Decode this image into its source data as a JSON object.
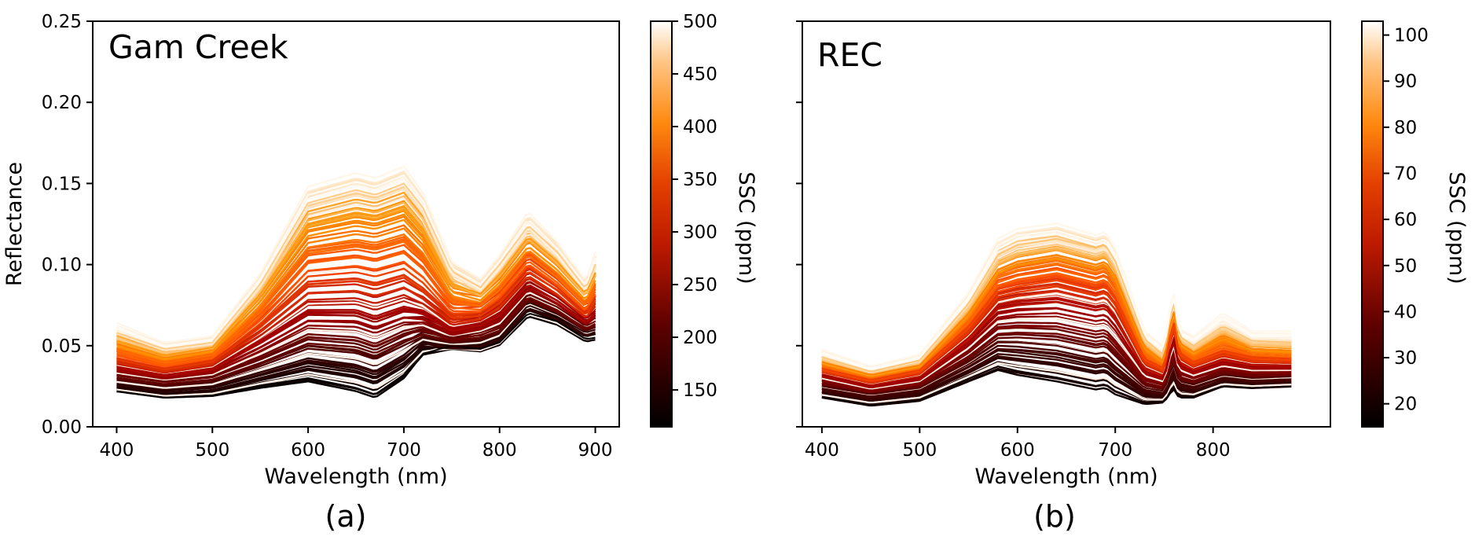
{
  "chart_data": [
    {
      "type": "line",
      "panel_label": "(a)",
      "annotation": "Gam Creek",
      "xlabel": "Wavelength (nm)",
      "ylabel": "Reflectance",
      "xlim": [
        375,
        925
      ],
      "ylim": [
        0,
        0.25
      ],
      "x_ticks": [
        400,
        500,
        600,
        700,
        800,
        900
      ],
      "y_ticks": [
        "0.00",
        "0.05",
        "0.10",
        "0.15",
        "0.20",
        "0.25"
      ],
      "grid": false,
      "colorbar": {
        "label": "SSC (ppm)",
        "range": [
          115,
          500
        ],
        "ticks": [
          150,
          200,
          250,
          300,
          350,
          400,
          450,
          500
        ],
        "colormap": "gist_heat"
      },
      "series": [
        {
          "ssc": 120,
          "x": [
            400,
            450,
            500,
            550,
            600,
            650,
            670,
            700,
            720,
            750,
            780,
            800,
            830,
            860,
            890,
            900
          ],
          "y": [
            0.022,
            0.018,
            0.019,
            0.024,
            0.028,
            0.022,
            0.018,
            0.03,
            0.045,
            0.05,
            0.048,
            0.052,
            0.07,
            0.065,
            0.054,
            0.055
          ]
        },
        {
          "ssc": 150,
          "x": [
            400,
            450,
            500,
            550,
            600,
            650,
            670,
            700,
            720,
            750,
            780,
            800,
            830,
            860,
            890,
            900
          ],
          "y": [
            0.026,
            0.022,
            0.024,
            0.032,
            0.04,
            0.036,
            0.032,
            0.042,
            0.052,
            0.05,
            0.05,
            0.055,
            0.075,
            0.068,
            0.058,
            0.06
          ]
        },
        {
          "ssc": 200,
          "x": [
            400,
            450,
            500,
            550,
            600,
            650,
            670,
            700,
            720,
            750,
            780,
            800,
            830,
            860,
            890,
            900
          ],
          "y": [
            0.032,
            0.028,
            0.031,
            0.042,
            0.055,
            0.053,
            0.049,
            0.057,
            0.06,
            0.055,
            0.058,
            0.062,
            0.082,
            0.074,
            0.062,
            0.065
          ]
        },
        {
          "ssc": 250,
          "x": [
            400,
            450,
            500,
            550,
            600,
            650,
            670,
            700,
            720,
            750,
            780,
            800,
            830,
            860,
            890,
            900
          ],
          "y": [
            0.037,
            0.032,
            0.036,
            0.052,
            0.07,
            0.07,
            0.066,
            0.072,
            0.07,
            0.06,
            0.064,
            0.07,
            0.09,
            0.08,
            0.066,
            0.072
          ]
        },
        {
          "ssc": 300,
          "x": [
            400,
            450,
            500,
            550,
            600,
            650,
            670,
            700,
            720,
            750,
            780,
            800,
            830,
            860,
            890,
            900
          ],
          "y": [
            0.042,
            0.036,
            0.041,
            0.062,
            0.088,
            0.09,
            0.087,
            0.092,
            0.084,
            0.068,
            0.07,
            0.078,
            0.098,
            0.086,
            0.07,
            0.08
          ]
        },
        {
          "ssc": 350,
          "x": [
            400,
            450,
            500,
            550,
            600,
            650,
            670,
            700,
            720,
            750,
            780,
            800,
            830,
            860,
            890,
            900
          ],
          "y": [
            0.048,
            0.04,
            0.045,
            0.072,
            0.108,
            0.112,
            0.11,
            0.115,
            0.104,
            0.078,
            0.076,
            0.086,
            0.108,
            0.094,
            0.076,
            0.088
          ]
        },
        {
          "ssc": 400,
          "x": [
            400,
            450,
            500,
            550,
            600,
            650,
            670,
            700,
            720,
            750,
            780,
            800,
            830,
            860,
            890,
            900
          ],
          "y": [
            0.053,
            0.044,
            0.049,
            0.082,
            0.125,
            0.132,
            0.13,
            0.136,
            0.122,
            0.088,
            0.082,
            0.094,
            0.117,
            0.102,
            0.082,
            0.095
          ]
        },
        {
          "ssc": 450,
          "x": [
            400,
            450,
            500,
            550,
            600,
            650,
            670,
            700,
            720,
            750,
            780,
            800,
            830,
            860,
            890,
            900
          ],
          "y": [
            0.058,
            0.048,
            0.052,
            0.088,
            0.138,
            0.146,
            0.143,
            0.15,
            0.135,
            0.096,
            0.086,
            0.1,
            0.124,
            0.108,
            0.085,
            0.1
          ]
        },
        {
          "ssc": 495,
          "x": [
            400,
            450,
            500,
            550,
            600,
            650,
            670,
            700,
            720,
            750,
            780,
            800,
            830,
            860,
            890,
            900
          ],
          "y": [
            0.062,
            0.05,
            0.054,
            0.091,
            0.143,
            0.151,
            0.148,
            0.155,
            0.139,
            0.098,
            0.088,
            0.102,
            0.128,
            0.11,
            0.087,
            0.104
          ]
        }
      ]
    },
    {
      "type": "line",
      "panel_label": "(b)",
      "annotation": "REC",
      "xlabel": "Wavelength (nm)",
      "ylabel": "",
      "xlim": [
        380,
        920
      ],
      "ylim": [
        0,
        0.25
      ],
      "x_ticks": [
        400,
        500,
        600,
        700,
        800
      ],
      "y_ticks": [],
      "grid": false,
      "colorbar": {
        "label": "SSC (ppm)",
        "range": [
          15,
          103
        ],
        "ticks": [
          20,
          30,
          40,
          50,
          60,
          70,
          80,
          90,
          100
        ],
        "colormap": "gist_heat"
      },
      "series": [
        {
          "ssc": 18,
          "x": [
            400,
            450,
            500,
            550,
            580,
            600,
            640,
            680,
            690,
            700,
            730,
            750,
            755,
            760,
            765,
            780,
            810,
            840,
            880
          ],
          "y": [
            0.018,
            0.013,
            0.016,
            0.028,
            0.035,
            0.032,
            0.028,
            0.023,
            0.024,
            0.02,
            0.014,
            0.015,
            0.02,
            0.023,
            0.018,
            0.018,
            0.025,
            0.024,
            0.025
          ]
        },
        {
          "ssc": 30,
          "x": [
            400,
            450,
            500,
            550,
            580,
            600,
            640,
            680,
            690,
            700,
            730,
            750,
            755,
            760,
            765,
            780,
            810,
            840,
            880
          ],
          "y": [
            0.025,
            0.02,
            0.024,
            0.04,
            0.052,
            0.052,
            0.05,
            0.045,
            0.046,
            0.04,
            0.024,
            0.022,
            0.032,
            0.038,
            0.028,
            0.026,
            0.032,
            0.03,
            0.031
          ]
        },
        {
          "ssc": 45,
          "x": [
            400,
            450,
            500,
            550,
            580,
            600,
            640,
            680,
            690,
            700,
            730,
            750,
            755,
            760,
            765,
            780,
            810,
            840,
            880
          ],
          "y": [
            0.032,
            0.025,
            0.03,
            0.052,
            0.07,
            0.072,
            0.073,
            0.068,
            0.069,
            0.062,
            0.034,
            0.03,
            0.045,
            0.054,
            0.038,
            0.034,
            0.04,
            0.037,
            0.037
          ]
        },
        {
          "ssc": 60,
          "x": [
            400,
            450,
            500,
            550,
            580,
            600,
            640,
            680,
            690,
            700,
            730,
            750,
            755,
            760,
            765,
            780,
            810,
            840,
            880
          ],
          "y": [
            0.036,
            0.029,
            0.035,
            0.062,
            0.085,
            0.088,
            0.092,
            0.086,
            0.088,
            0.08,
            0.042,
            0.036,
            0.054,
            0.064,
            0.046,
            0.04,
            0.047,
            0.043,
            0.042
          ]
        },
        {
          "ssc": 75,
          "x": [
            400,
            450,
            500,
            550,
            580,
            600,
            640,
            680,
            690,
            700,
            730,
            750,
            755,
            760,
            765,
            780,
            810,
            840,
            880
          ],
          "y": [
            0.04,
            0.032,
            0.038,
            0.07,
            0.097,
            0.102,
            0.106,
            0.1,
            0.102,
            0.093,
            0.049,
            0.04,
            0.06,
            0.071,
            0.052,
            0.046,
            0.055,
            0.048,
            0.047
          ]
        },
        {
          "ssc": 90,
          "x": [
            400,
            450,
            500,
            550,
            580,
            600,
            640,
            680,
            690,
            700,
            730,
            750,
            755,
            760,
            765,
            780,
            810,
            840,
            880
          ],
          "y": [
            0.043,
            0.034,
            0.041,
            0.076,
            0.106,
            0.112,
            0.116,
            0.11,
            0.112,
            0.102,
            0.054,
            0.044,
            0.065,
            0.076,
            0.056,
            0.05,
            0.062,
            0.053,
            0.052
          ]
        },
        {
          "ssc": 102,
          "x": [
            400,
            450,
            500,
            550,
            580,
            600,
            640,
            680,
            690,
            700,
            730,
            750,
            755,
            760,
            765,
            780,
            810,
            840,
            880
          ],
          "y": [
            0.046,
            0.036,
            0.043,
            0.08,
            0.112,
            0.118,
            0.121,
            0.114,
            0.116,
            0.106,
            0.057,
            0.048,
            0.068,
            0.079,
            0.059,
            0.054,
            0.068,
            0.057,
            0.057
          ]
        }
      ]
    }
  ]
}
